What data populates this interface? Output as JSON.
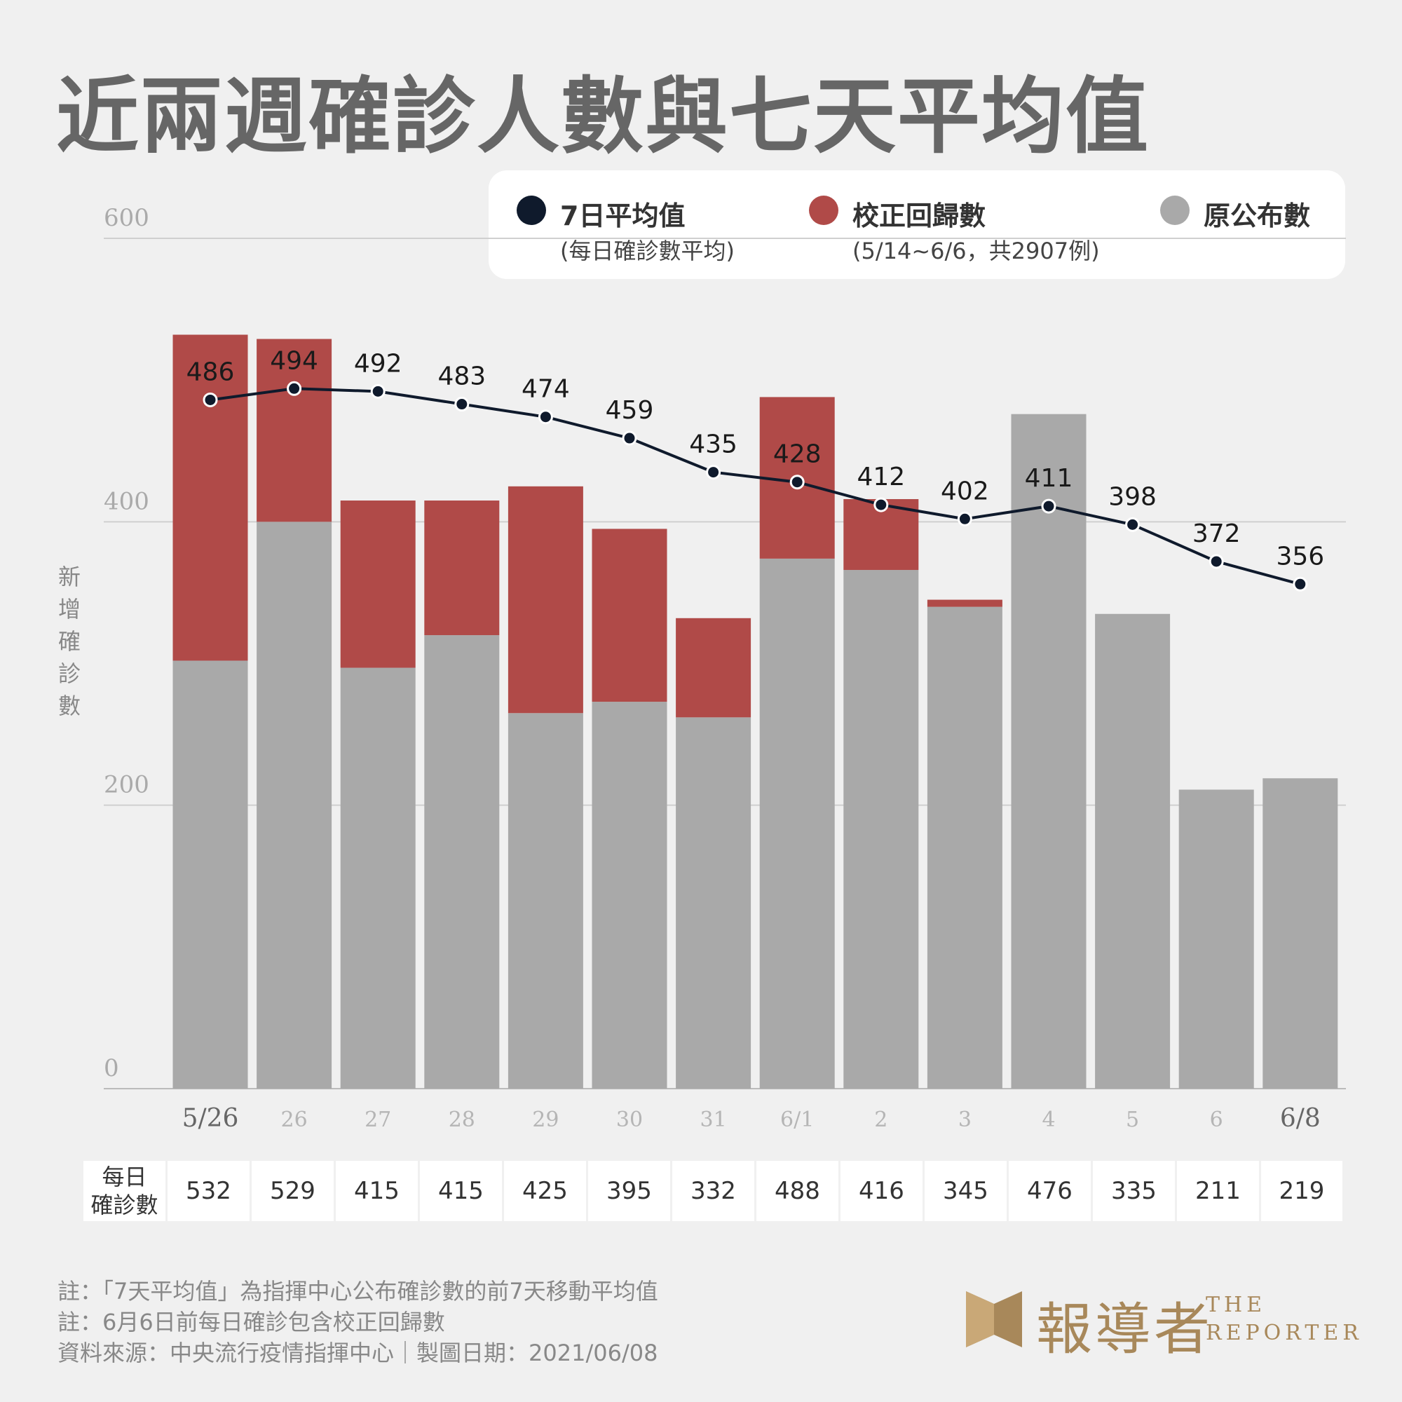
{
  "title": "近兩週確診人數與七天平均值",
  "legend": {
    "avg": {
      "label": "7日平均值",
      "sub": "(每日確診數平均)"
    },
    "corrected": {
      "label": "校正回歸數",
      "sub": "(5/14~6/6，共2907例)"
    },
    "original": {
      "label": "原公布數"
    }
  },
  "ylabel": "新增確診數",
  "colors": {
    "original": "#a9a9a9",
    "corrected": "#b04a48",
    "avg_line": "#0f1a2c",
    "grid": "#cfcfcf",
    "axis_tick": "#aaaaaa",
    "axis_tick_edge": "#666666"
  },
  "chart_data": {
    "type": "bar",
    "stacked": true,
    "x_labels": [
      "5/26",
      "26",
      "27",
      "28",
      "29",
      "30",
      "31",
      "6/1",
      "2",
      "3",
      "4",
      "5",
      "6",
      "6/8"
    ],
    "series": [
      {
        "name": "原公布數",
        "values": [
          302,
          400,
          297,
          320,
          265,
          273,
          262,
          374,
          366,
          340,
          476,
          335,
          211,
          219
        ]
      },
      {
        "name": "校正回歸數",
        "values": [
          230,
          129,
          118,
          95,
          160,
          122,
          70,
          114,
          50,
          5,
          0,
          0,
          0,
          0
        ]
      }
    ],
    "line": {
      "name": "7日平均值",
      "values": [
        486,
        494,
        492,
        483,
        474,
        459,
        435,
        428,
        412,
        402,
        411,
        398,
        372,
        356
      ]
    },
    "ylim": [
      0,
      600
    ],
    "yticks": [
      0,
      200,
      400,
      600
    ],
    "grid": true,
    "legend_position": "top-right"
  },
  "table": {
    "header": [
      "每日",
      "確診數"
    ],
    "values": [
      "532",
      "529",
      "415",
      "415",
      "425",
      "395",
      "332",
      "488",
      "416",
      "345",
      "476",
      "335",
      "211",
      "219"
    ]
  },
  "notes": [
    "註：「7天平均值」為指揮中心公布確診數的前7天移動平均值",
    "註：6月6日前每日確診包含校正回歸數",
    "資料來源：中央流行疫情指揮中心｜製圖日期：2021/06/08"
  ],
  "logo": {
    "cn": "報導者",
    "en1": "THE",
    "en2": "REPORTER"
  }
}
